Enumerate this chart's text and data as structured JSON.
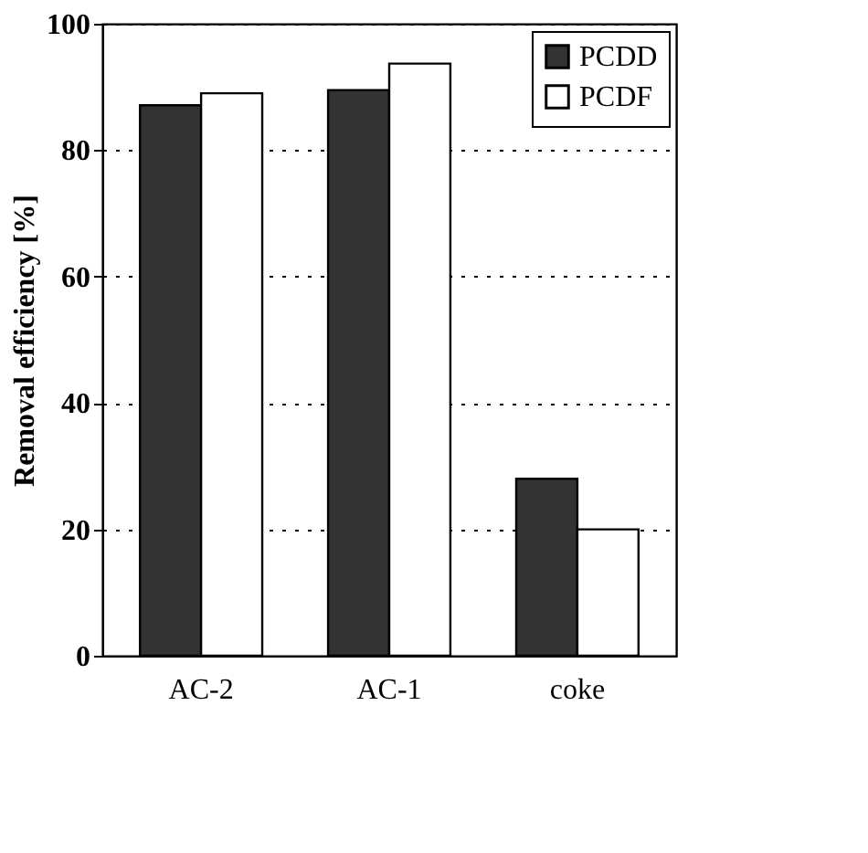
{
  "chart_data": {
    "type": "bar",
    "ylabel": "Removal efficiency [%]",
    "categories": [
      "AC-2",
      "AC-1",
      "coke"
    ],
    "series": [
      {
        "name": "PCDD",
        "color": "#333333",
        "values": [
          87.1,
          89.5,
          28
        ]
      },
      {
        "name": "PCDF",
        "color": "#ffffff",
        "values": [
          89,
          93.7,
          20
        ]
      }
    ],
    "ylim": [
      0,
      100
    ],
    "yticks": [
      0,
      20,
      40,
      60,
      80,
      100
    ],
    "grid": "y",
    "legend": "top right"
  }
}
